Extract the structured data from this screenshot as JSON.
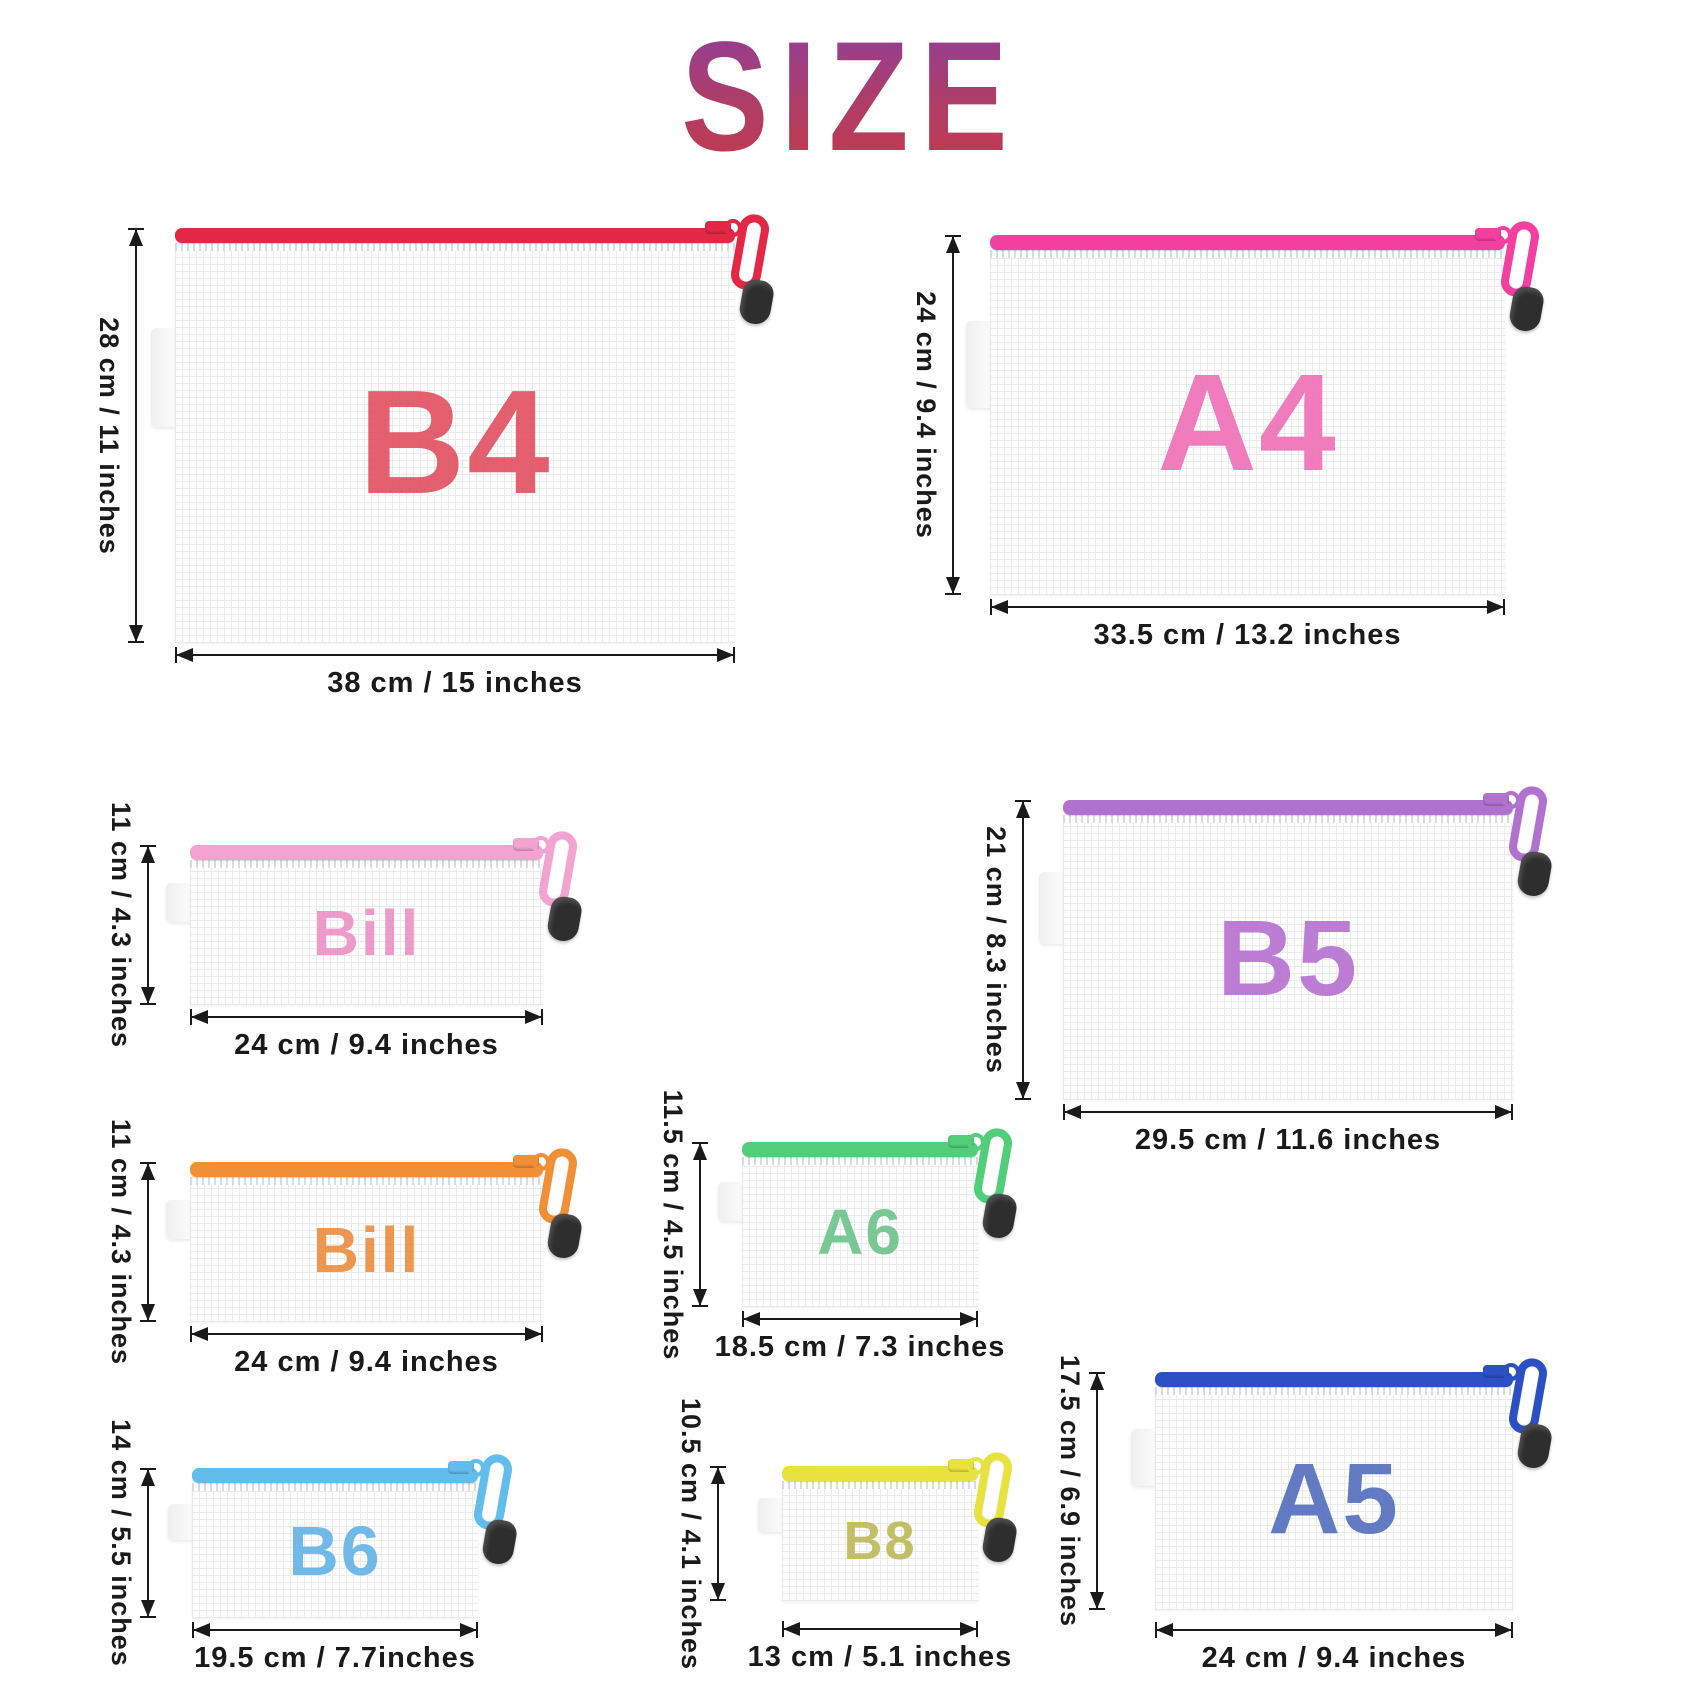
{
  "title": "SIZE",
  "title_gradient": {
    "top": "#8e3f9d",
    "bottom": "#c63a48"
  },
  "arrow_color": "#1a1a1a",
  "pull_head_color": "#2e2e2e",
  "pouches": [
    {
      "id": "b4",
      "label": "B4",
      "height_label": "28 cm / 11 inches",
      "width_label": "38 cm / 15 inches",
      "zipper_color": "#e32846",
      "label_color": "#e25364"
    },
    {
      "id": "a4",
      "label": "A4",
      "height_label": "24 cm / 9.4 inches",
      "width_label": "33.5 cm / 13.2 inches",
      "zipper_color": "#f340a0",
      "label_color": "#ef72b8"
    },
    {
      "id": "bill1",
      "label": "Bill",
      "height_label": "11 cm / 4.3 inches",
      "width_label": "24 cm / 9.4 inches",
      "zipper_color": "#f2a3cf",
      "label_color": "#ec93c6"
    },
    {
      "id": "b5",
      "label": "B5",
      "height_label": "21 cm / 8.3 inches",
      "width_label": "29.5 cm / 11.6 inches",
      "zipper_color": "#b071cf",
      "label_color": "#b873d2"
    },
    {
      "id": "bill2",
      "label": "Bill",
      "height_label": "11 cm / 4.3 inches",
      "width_label": "24 cm / 9.4 inches",
      "zipper_color": "#f08f35",
      "label_color": "#ec8f42"
    },
    {
      "id": "a6",
      "label": "A6",
      "height_label": "11.5 cm / 4.5 inches",
      "width_label": "18.5 cm / 7.3 inches",
      "zipper_color": "#52cd79",
      "label_color": "#6ec48d"
    },
    {
      "id": "b6",
      "label": "B6",
      "height_label": "14 cm / 5.5 inches",
      "width_label": "19.5 cm / 7.7inches",
      "zipper_color": "#62bcec",
      "label_color": "#66b5e6"
    },
    {
      "id": "b8",
      "label": "B8",
      "height_label": "10.5 cm / 4.1 inches",
      "width_label": "13 cm / 5.1 inches",
      "zipper_color": "#e7e23e",
      "label_color": "#bfba5a"
    },
    {
      "id": "a5",
      "label": "A5",
      "height_label": "17.5 cm / 6.9 inches",
      "width_label": "24 cm / 9.4 inches",
      "zipper_color": "#2b50c4",
      "label_color": "#5670bd"
    }
  ]
}
